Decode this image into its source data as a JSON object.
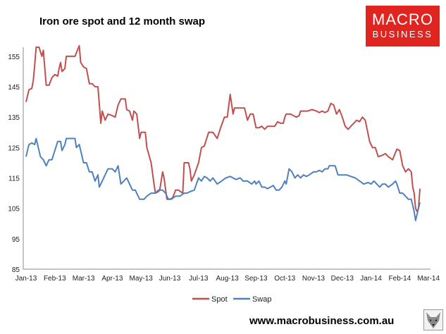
{
  "title": "Iron ore spot and 12 month swap",
  "logo": {
    "line1": "MACRO",
    "line2": "BUSINESS"
  },
  "website": "www.macrobusiness.com.au",
  "colors": {
    "spot": "#c0504d",
    "swap": "#4f81bd",
    "logo_bg": "#e0241f"
  },
  "chart_data": {
    "type": "line",
    "title": "Iron ore spot and 12 month swap",
    "x_labels": [
      "Jan-13",
      "Feb-13",
      "Mar-13",
      "Apr-13",
      "May-13",
      "Jun-13",
      "Jul-13",
      "Aug-13",
      "Sep-13",
      "Oct-13",
      "Nov-13",
      "Dec-13",
      "Jan-14",
      "Feb-14",
      "Mar-14"
    ],
    "y_ticks": [
      85,
      95,
      105,
      115,
      125,
      135,
      145,
      155
    ],
    "ylim": [
      85,
      158
    ],
    "grid": false,
    "legend_position": "bottom",
    "series": [
      {
        "name": "Spot",
        "color": "#c0504d",
        "points": [
          [
            0,
            140
          ],
          [
            0.05,
            142
          ],
          [
            0.1,
            144
          ],
          [
            0.2,
            144.5
          ],
          [
            0.25,
            147
          ],
          [
            0.3,
            152
          ],
          [
            0.35,
            158
          ],
          [
            0.45,
            158
          ],
          [
            0.55,
            155
          ],
          [
            0.6,
            157
          ],
          [
            0.7,
            145.5
          ],
          [
            0.8,
            145.5
          ],
          [
            0.9,
            148
          ],
          [
            1,
            149
          ],
          [
            1.1,
            148.5
          ],
          [
            1.15,
            151
          ],
          [
            1.2,
            153
          ],
          [
            1.25,
            150
          ],
          [
            1.35,
            151
          ],
          [
            1.4,
            155
          ],
          [
            1.6,
            155
          ],
          [
            1.7,
            155
          ],
          [
            1.85,
            158.5
          ],
          [
            1.9,
            153
          ],
          [
            2.0,
            151.5
          ],
          [
            2.1,
            151
          ],
          [
            2.2,
            146
          ],
          [
            2.3,
            146
          ],
          [
            2.4,
            145
          ],
          [
            2.5,
            145
          ],
          [
            2.6,
            133
          ],
          [
            2.65,
            137
          ],
          [
            2.75,
            134
          ],
          [
            2.85,
            136
          ],
          [
            3.0,
            135.5
          ],
          [
            3.1,
            135
          ],
          [
            3.2,
            139
          ],
          [
            3.3,
            141
          ],
          [
            3.45,
            141
          ],
          [
            3.5,
            137.5
          ],
          [
            3.6,
            137
          ],
          [
            3.7,
            134
          ],
          [
            3.75,
            137
          ],
          [
            3.85,
            136
          ],
          [
            3.95,
            128
          ],
          [
            4.0,
            130
          ],
          [
            4.15,
            130
          ],
          [
            4.2,
            125
          ],
          [
            4.35,
            120
          ],
          [
            4.45,
            113
          ],
          [
            4.5,
            110
          ],
          [
            4.6,
            110.5
          ],
          [
            4.65,
            111
          ],
          [
            4.75,
            117
          ],
          [
            4.8,
            115
          ],
          [
            4.9,
            108
          ],
          [
            5.0,
            108
          ],
          [
            5.1,
            108.5
          ],
          [
            5.2,
            111
          ],
          [
            5.3,
            111
          ],
          [
            5.45,
            110
          ],
          [
            5.5,
            120
          ],
          [
            5.65,
            120
          ],
          [
            5.7,
            118
          ],
          [
            5.75,
            114
          ],
          [
            5.85,
            116
          ],
          [
            6.0,
            120
          ],
          [
            6.1,
            125
          ],
          [
            6.2,
            125.5
          ],
          [
            6.35,
            130
          ],
          [
            6.5,
            130
          ],
          [
            6.65,
            128
          ],
          [
            6.75,
            131
          ],
          [
            6.9,
            135
          ],
          [
            7.0,
            135
          ],
          [
            7.1,
            142.5
          ],
          [
            7.2,
            136
          ],
          [
            7.25,
            138
          ],
          [
            7.4,
            138
          ],
          [
            7.6,
            138
          ],
          [
            7.7,
            134
          ],
          [
            7.8,
            136
          ],
          [
            7.9,
            136
          ],
          [
            8.0,
            131.5
          ],
          [
            8.1,
            131.5
          ],
          [
            8.2,
            132
          ],
          [
            8.3,
            131
          ],
          [
            8.4,
            132
          ],
          [
            8.5,
            132
          ],
          [
            8.65,
            132
          ],
          [
            8.75,
            133.5
          ],
          [
            8.85,
            133
          ],
          [
            8.95,
            133
          ],
          [
            9.0,
            135
          ],
          [
            9.05,
            136
          ],
          [
            9.2,
            136
          ],
          [
            9.3,
            135.5
          ],
          [
            9.4,
            135
          ],
          [
            9.5,
            135.5
          ],
          [
            9.55,
            137
          ],
          [
            9.7,
            137
          ],
          [
            9.8,
            137
          ],
          [
            9.95,
            137.5
          ],
          [
            10.1,
            137
          ],
          [
            10.2,
            136.5
          ],
          [
            10.3,
            137
          ],
          [
            10.4,
            136.5
          ],
          [
            10.5,
            137
          ],
          [
            10.6,
            139.5
          ],
          [
            10.7,
            139
          ],
          [
            10.8,
            136
          ],
          [
            10.9,
            137.5
          ],
          [
            11.0,
            135
          ],
          [
            11.1,
            132
          ],
          [
            11.2,
            131
          ],
          [
            11.3,
            132
          ],
          [
            11.4,
            133
          ],
          [
            11.5,
            134
          ],
          [
            11.6,
            133.5
          ],
          [
            11.7,
            135
          ],
          [
            11.8,
            134
          ],
          [
            11.95,
            127
          ],
          [
            12.05,
            125
          ],
          [
            12.15,
            125
          ],
          [
            12.25,
            122
          ],
          [
            12.4,
            122.5
          ],
          [
            12.5,
            123
          ],
          [
            12.6,
            122
          ],
          [
            12.75,
            121
          ],
          [
            12.9,
            124.5
          ],
          [
            13.0,
            124
          ],
          [
            13.1,
            119
          ],
          [
            13.2,
            117
          ],
          [
            13.3,
            118
          ],
          [
            13.4,
            117
          ],
          [
            13.45,
            112
          ],
          [
            13.5,
            110
          ],
          [
            13.55,
            105
          ],
          [
            13.6,
            104
          ],
          [
            13.65,
            105
          ],
          [
            13.7,
            111.5
          ]
        ]
      },
      {
        "name": "Swap",
        "color": "#4f81bd",
        "points": [
          [
            0,
            122
          ],
          [
            0.05,
            124
          ],
          [
            0.1,
            126
          ],
          [
            0.2,
            126.5
          ],
          [
            0.3,
            126
          ],
          [
            0.35,
            128
          ],
          [
            0.4,
            126
          ],
          [
            0.5,
            122
          ],
          [
            0.6,
            121
          ],
          [
            0.7,
            119
          ],
          [
            0.8,
            121
          ],
          [
            0.9,
            121
          ],
          [
            1.0,
            124
          ],
          [
            1.1,
            127
          ],
          [
            1.2,
            127
          ],
          [
            1.25,
            124
          ],
          [
            1.35,
            126
          ],
          [
            1.4,
            128
          ],
          [
            1.5,
            128
          ],
          [
            1.6,
            128
          ],
          [
            1.7,
            128
          ],
          [
            1.75,
            125
          ],
          [
            1.85,
            126
          ],
          [
            2.0,
            120
          ],
          [
            2.1,
            120
          ],
          [
            2.2,
            117
          ],
          [
            2.3,
            117
          ],
          [
            2.4,
            114
          ],
          [
            2.5,
            116
          ],
          [
            2.55,
            112
          ],
          [
            2.65,
            114
          ],
          [
            2.75,
            116
          ],
          [
            2.85,
            118
          ],
          [
            3.0,
            118
          ],
          [
            3.1,
            117
          ],
          [
            3.2,
            119
          ],
          [
            3.3,
            113
          ],
          [
            3.4,
            114
          ],
          [
            3.5,
            115
          ],
          [
            3.6,
            113
          ],
          [
            3.7,
            111
          ],
          [
            3.8,
            111
          ],
          [
            3.95,
            108
          ],
          [
            4.1,
            108
          ],
          [
            4.2,
            109
          ],
          [
            4.35,
            110
          ],
          [
            4.5,
            110
          ],
          [
            4.6,
            111
          ],
          [
            4.75,
            111
          ],
          [
            4.85,
            110
          ],
          [
            4.95,
            108
          ],
          [
            5.05,
            108
          ],
          [
            5.2,
            109
          ],
          [
            5.35,
            109
          ],
          [
            5.5,
            110
          ],
          [
            5.6,
            110
          ],
          [
            5.7,
            110.5
          ],
          [
            5.85,
            111
          ],
          [
            6.0,
            115
          ],
          [
            6.1,
            114
          ],
          [
            6.2,
            115.5
          ],
          [
            6.3,
            115
          ],
          [
            6.4,
            114
          ],
          [
            6.5,
            115
          ],
          [
            6.65,
            113
          ],
          [
            6.8,
            114
          ],
          [
            6.95,
            115
          ],
          [
            7.1,
            115.5
          ],
          [
            7.2,
            115
          ],
          [
            7.3,
            114.5
          ],
          [
            7.45,
            115
          ],
          [
            7.55,
            114
          ],
          [
            7.7,
            114
          ],
          [
            7.85,
            113
          ],
          [
            7.95,
            114
          ],
          [
            8.0,
            113
          ],
          [
            8.1,
            114
          ],
          [
            8.2,
            112
          ],
          [
            8.3,
            112
          ],
          [
            8.4,
            111.5
          ],
          [
            8.5,
            112
          ],
          [
            8.6,
            112.5
          ],
          [
            8.7,
            111
          ],
          [
            8.8,
            111
          ],
          [
            8.9,
            112
          ],
          [
            9.0,
            114
          ],
          [
            9.05,
            113
          ],
          [
            9.15,
            118
          ],
          [
            9.25,
            117
          ],
          [
            9.35,
            115
          ],
          [
            9.45,
            116
          ],
          [
            9.55,
            115
          ],
          [
            9.65,
            116
          ],
          [
            9.75,
            115.5
          ],
          [
            9.85,
            116
          ],
          [
            10.0,
            117
          ],
          [
            10.1,
            117
          ],
          [
            10.2,
            117.5
          ],
          [
            10.3,
            117
          ],
          [
            10.4,
            118
          ],
          [
            10.5,
            118
          ],
          [
            10.55,
            119
          ],
          [
            10.65,
            119
          ],
          [
            10.75,
            119
          ],
          [
            10.85,
            116
          ],
          [
            10.95,
            116
          ],
          [
            11.05,
            116
          ],
          [
            11.15,
            116
          ],
          [
            11.3,
            115.5
          ],
          [
            11.45,
            115
          ],
          [
            11.6,
            114
          ],
          [
            11.75,
            113
          ],
          [
            11.9,
            113.5
          ],
          [
            12.0,
            113
          ],
          [
            12.1,
            114
          ],
          [
            12.2,
            113
          ],
          [
            12.3,
            112
          ],
          [
            12.4,
            113
          ],
          [
            12.5,
            113
          ],
          [
            12.6,
            112
          ],
          [
            12.75,
            113
          ],
          [
            12.85,
            114
          ],
          [
            12.9,
            113
          ],
          [
            13.0,
            110
          ],
          [
            13.1,
            110
          ],
          [
            13.2,
            109
          ],
          [
            13.3,
            108
          ],
          [
            13.4,
            108
          ],
          [
            13.5,
            104
          ],
          [
            13.55,
            101
          ],
          [
            13.6,
            103
          ],
          [
            13.7,
            107
          ]
        ]
      }
    ]
  }
}
